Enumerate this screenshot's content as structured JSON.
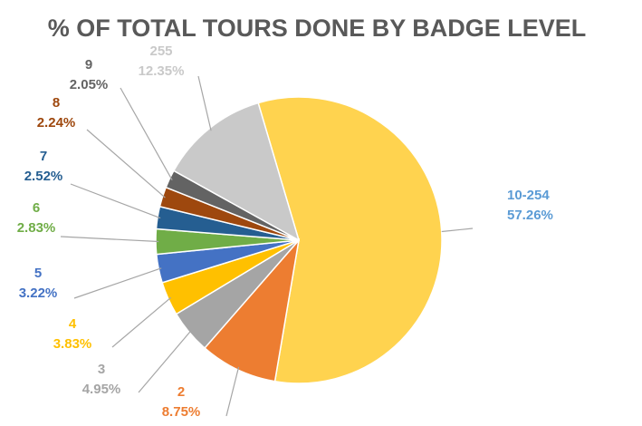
{
  "chart_data": {
    "type": "pie",
    "title": "% OF TOTAL TOURS DONE BY BADGE LEVEL",
    "slices": [
      {
        "name": "10-254",
        "pct_label": "57.26%",
        "value": 57.26,
        "color": "#FFD34F",
        "label_color": "#5B9BD5"
      },
      {
        "name": "2",
        "pct_label": "8.75%",
        "value": 8.75,
        "color": "#ED7D31",
        "label_color": "#ED7D31"
      },
      {
        "name": "3",
        "pct_label": "4.95%",
        "value": 4.95,
        "color": "#A5A5A5",
        "label_color": "#A5A5A5"
      },
      {
        "name": "4",
        "pct_label": "3.83%",
        "value": 3.83,
        "color": "#FFC000",
        "label_color": "#FFC000"
      },
      {
        "name": "5",
        "pct_label": "3.22%",
        "value": 3.22,
        "color": "#4472C4",
        "label_color": "#4472C4"
      },
      {
        "name": "6",
        "pct_label": "2.83%",
        "value": 2.83,
        "color": "#70AD47",
        "label_color": "#70AD47"
      },
      {
        "name": "7",
        "pct_label": "2.52%",
        "value": 2.52,
        "color": "#255E91",
        "label_color": "#255E91"
      },
      {
        "name": "8",
        "pct_label": "2.24%",
        "value": 2.24,
        "color": "#9E480E",
        "label_color": "#9E480E"
      },
      {
        "name": "9",
        "pct_label": "2.05%",
        "value": 2.05,
        "color": "#636363",
        "label_color": "#636363"
      },
      {
        "name": "255",
        "pct_label": "12.35%",
        "value": 12.35,
        "color": "#C9C9C9",
        "label_color": "#C9C9C9"
      }
    ]
  }
}
